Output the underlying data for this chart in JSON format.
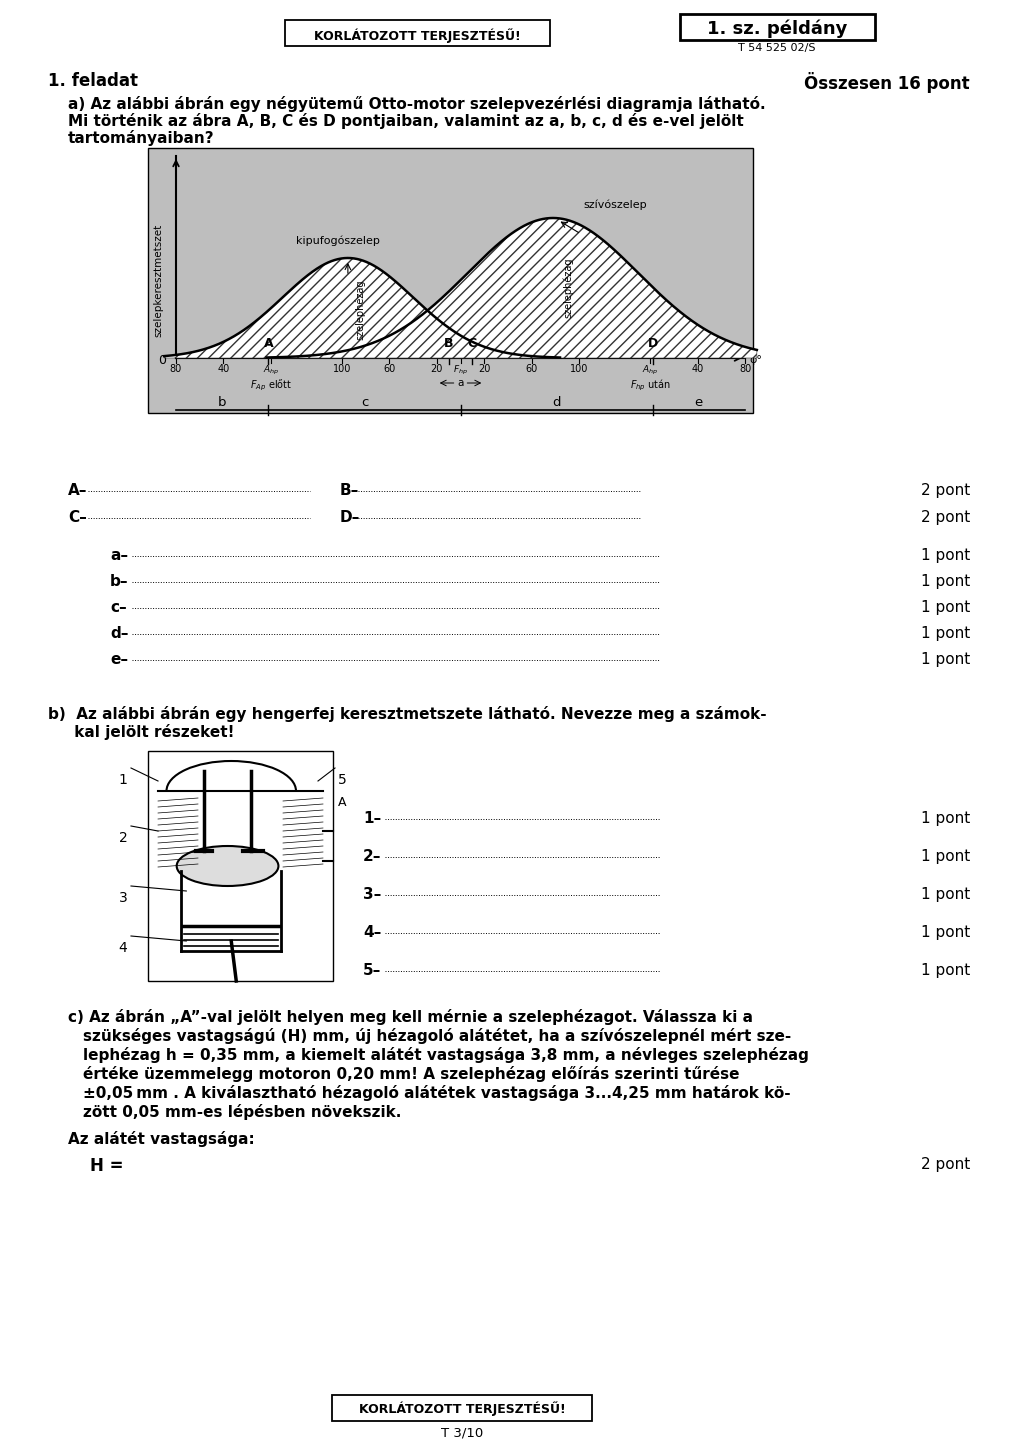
{
  "header_left": "KORLÁTOZOTT TERJESZTÉSŰ!",
  "header_right": "1. sz. példány",
  "header_right_sub": "T 54 525 02/S",
  "task_label": "1. feladat",
  "task_points": "Összesen 16 pont",
  "task_a_text1": "a) Az alábbi ábrán egy négyütemű Otto-motor szelepvezérlési diagramja látható.",
  "task_a_text2": "Mi történik az ábra A, B, C és D pontjaiban, valamint az a, b, c, d és e-vel jelölt",
  "task_a_text3": "tartományaiban?",
  "points_AB": "2 pont",
  "points_CD": "2 pont",
  "points_small": "1 pont",
  "task_b_text1": "b)  Az alábbi ábrán egy hengerfej keresztmetszete látható. Nevezze meg a számok-",
  "task_b_text2": "     kal jelölt részeket!",
  "task_c_lines": [
    "c) Az ábrán „A”-val jelölt helyen meg kell mérnie a szelephézagot. Válassza ki a",
    "szükséges vastagságú (H) mm, új hézagoló alátétet, ha a szívószelepnél mért sze-",
    "lephézag h = 0,35 mm, a kiemelt alátét vastagsága 3,8 mm, a névleges szelephézag",
    "értéke üzemmelegg motoron 0,20 mm! A szelephézag előírás szerinti tűrése",
    "±0,05 mm . A kiválasztható hézagoló alátétek vastagsága 3...4,25 mm határok kö-",
    "zött 0,05 mm-es lépésben növekszik."
  ],
  "task_c_label": "Az alátét vastagsága:",
  "task_c_answer": "H =",
  "task_c_points": "2 pont",
  "footer_text": "KORLÁTOZOTT TERJESZTÉSŰ!",
  "footer_sub": "T 3/10",
  "bg_color": "#ffffff",
  "diagram_ylabel": "szelepkeresztmetszet",
  "diagram_label_kipufogo": "kipufogószelep",
  "diagram_label_szivo": "szívószelep",
  "diagram_label_szelephezag": "szelephézag"
}
